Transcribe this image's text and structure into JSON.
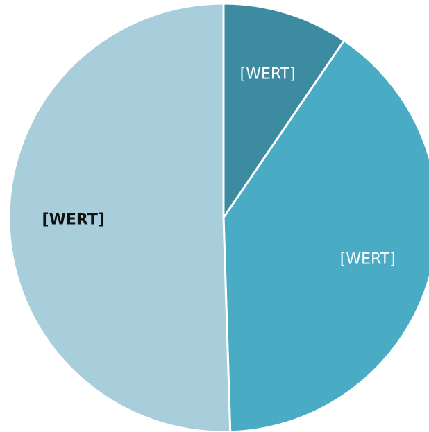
{
  "chart_data": {
    "type": "pie",
    "values": [
      9.5,
      40,
      50.5
    ],
    "value_labels": [
      "[WERT]",
      "[WERT]",
      "[WERT]"
    ],
    "colors": [
      "#3d8ba0",
      "#4aabc5",
      "#a9cedb"
    ],
    "label_colors": [
      "#ffffff",
      "#ffffff",
      "#111111"
    ]
  }
}
